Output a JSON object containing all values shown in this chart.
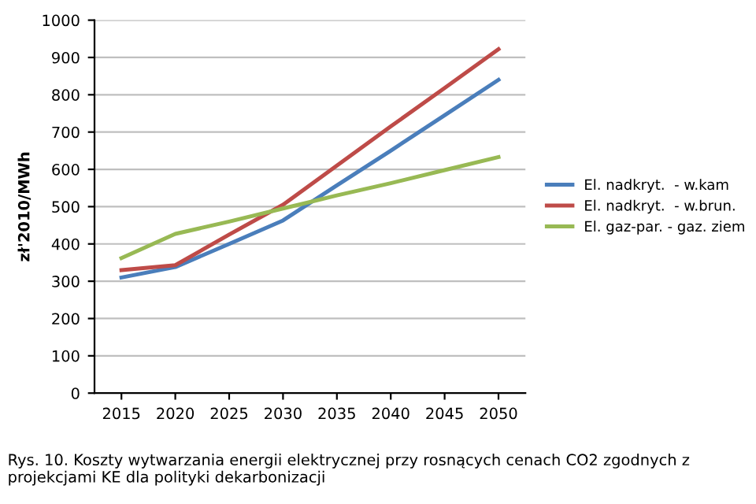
{
  "chart_data": {
    "type": "line",
    "ylabel": "zł'2010/MWh",
    "categories": [
      "2015",
      "2020",
      "2025",
      "2030",
      "2035",
      "2040",
      "2045",
      "2050"
    ],
    "series": [
      {
        "name": "El. nadkryt.  - w.kam",
        "color": "#4a7ebb",
        "values": [
          310,
          338,
          400,
          463,
          557,
          650,
          745,
          840
        ]
      },
      {
        "name": "El. nadkryt.  - w.brun.",
        "color": "#be4b48",
        "values": [
          330,
          343,
          425,
          505,
          610,
          715,
          818,
          922
        ]
      },
      {
        "name": "El. gaz-par. - gaz. ziem",
        "color": "#98b954",
        "values": [
          362,
          427,
          460,
          495,
          530,
          563,
          598,
          633
        ]
      }
    ],
    "ylim": [
      0,
      1000
    ],
    "yticks": [
      0,
      100,
      200,
      300,
      400,
      500,
      600,
      700,
      800,
      900,
      1000
    ],
    "grid": "y",
    "legend": "right",
    "marker": "none",
    "annotations": [
      "Rys. 10. Koszty wytwarzania energii elektrycznej przy rosnących cenach CO2 zgodnych z projekcjami KE dla polityki dekarbonizacji"
    ]
  }
}
